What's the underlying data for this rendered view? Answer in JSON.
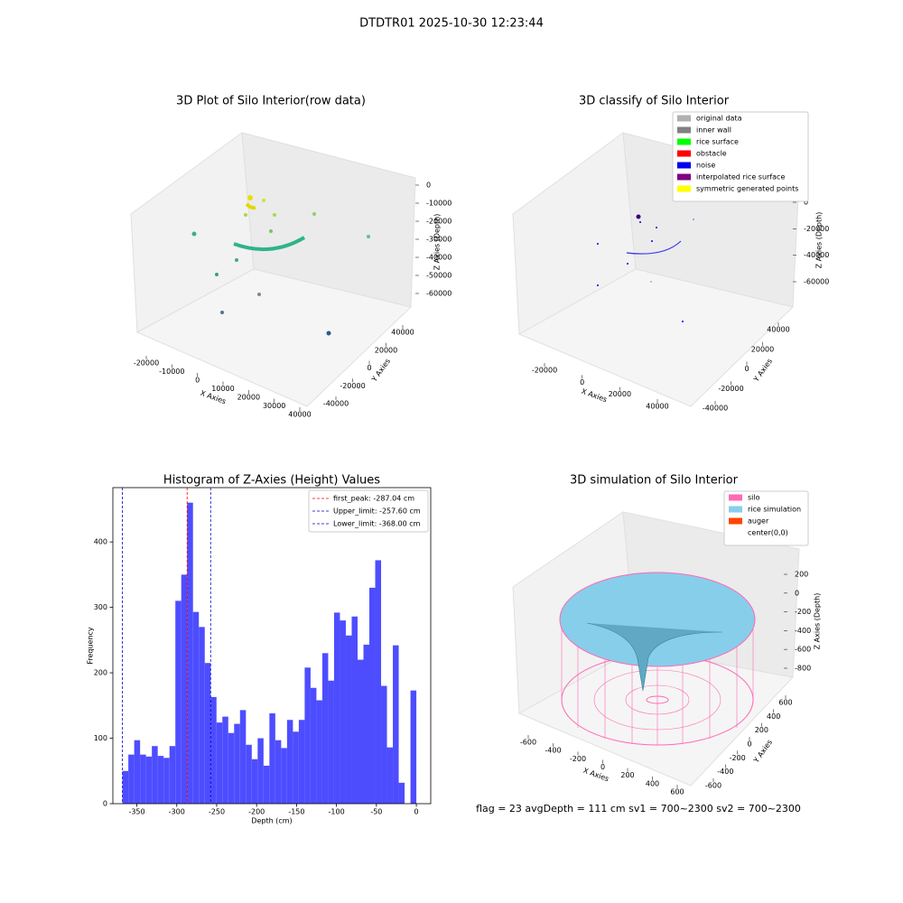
{
  "title": "DTDTR01 2025-10-30 12:23:44",
  "footer": "flag = 23  avgDepth = 111 cm  sv1 = 700~2300  sv2 = 700~2300",
  "chart_data": [
    {
      "type": "scatter3d",
      "title": "3D Plot of Silo Interior(row data)",
      "xlabel": "X Axies",
      "ylabel": "Y Axies",
      "zlabel": "Z Axies (Depth)",
      "xticks": [
        -20000,
        -10000,
        0,
        10000,
        20000,
        30000,
        40000
      ],
      "yticks": [
        -40000,
        -20000,
        0,
        20000,
        40000
      ],
      "zticks": [
        0,
        -10000,
        -20000,
        -30000,
        -40000,
        -50000,
        -60000
      ]
    },
    {
      "type": "scatter3d",
      "title": "3D classify of Silo Interior",
      "xlabel": "X Axies",
      "ylabel": "Y Axies",
      "zlabel": "Z Axies (Depth)",
      "xticks": [
        -20000,
        0,
        20000,
        40000
      ],
      "yticks": [
        -40000,
        -20000,
        0,
        20000,
        40000
      ],
      "zticks": [
        0,
        -20000,
        -40000,
        -60000
      ],
      "legend": [
        {
          "name": "original data",
          "color": "#b0b0b0"
        },
        {
          "name": "inner wall",
          "color": "#808080"
        },
        {
          "name": "rice surface",
          "color": "#00ff00"
        },
        {
          "name": "obstacle",
          "color": "#ff0000"
        },
        {
          "name": "noise",
          "color": "#0000ee"
        },
        {
          "name": "interpolated rice surface",
          "color": "#800080"
        },
        {
          "name": "symmetric generated points",
          "color": "#ffff00"
        }
      ]
    },
    {
      "type": "histogram",
      "title": "Histogram of Z-Axies (Height) Values",
      "xlabel": "Depth (cm)",
      "ylabel": "Frequency",
      "color": "#4d4dff",
      "bins": [
        -368,
        -360.64,
        -353.28,
        -345.92,
        -338.56,
        -331.2,
        -323.84,
        -316.48,
        -309.12,
        -301.76,
        -294.4,
        -287.04,
        -279.68,
        -272.32,
        -264.96,
        -257.6,
        -250.24,
        -242.88,
        -235.52,
        -228.16,
        -220.8,
        -213.44,
        -206.08,
        -198.72,
        -191.36,
        -184,
        -176.64,
        -169.28,
        -161.92,
        -154.56,
        -147.2,
        -139.84,
        -132.48,
        -125.12,
        -117.76,
        -110.4,
        -103.04,
        -95.68,
        -88.32,
        -80.96,
        -73.6,
        -66.24,
        -58.88,
        -51.52,
        -44.16,
        -36.8,
        -29.44,
        -22.08,
        -14.72,
        -7.36,
        0
      ],
      "values": [
        50,
        75,
        97,
        75,
        72,
        88,
        73,
        70,
        88,
        310,
        350,
        460,
        293,
        270,
        215,
        163,
        124,
        133,
        108,
        122,
        143,
        90,
        68,
        100,
        58,
        138,
        97,
        85,
        128,
        110,
        128,
        208,
        177,
        158,
        230,
        188,
        292,
        280,
        257,
        286,
        220,
        243,
        330,
        372,
        180,
        86,
        242,
        32,
        0,
        173
      ],
      "xlim": [
        -380,
        18
      ],
      "ylim": [
        0,
        483
      ],
      "xticks": [
        -350,
        -300,
        -250,
        -200,
        -150,
        -100,
        -50,
        0
      ],
      "yticks": [
        0,
        100,
        200,
        300,
        400
      ],
      "lines": [
        {
          "label": "first_peak: -287.04 cm",
          "value": -287.04,
          "color": "#ff0000"
        },
        {
          "label": "Upper_limit: -257.60 cm",
          "value": -257.6,
          "color": "#0000cc"
        },
        {
          "label": "Lower_limit: -368.00 cm",
          "value": -368,
          "color": "#0000cc"
        }
      ],
      "legend_loc": "upper right"
    },
    {
      "type": "surface3d",
      "title": "3D simulation of Silo Interior",
      "xlabel": "X Axies",
      "ylabel": "Y Axies",
      "zlabel": "Z Axies (Depth)",
      "xticks": [
        -600,
        -400,
        -200,
        0,
        200,
        400,
        600
      ],
      "yticks": [
        -600,
        -400,
        -200,
        0,
        200,
        400,
        600
      ],
      "zticks": [
        200,
        0,
        -200,
        -400,
        -600,
        -800
      ],
      "legend": [
        {
          "name": "silo",
          "color": "#ff69b4"
        },
        {
          "name": "rice simulation",
          "color": "#87ceeb"
        },
        {
          "name": "auger",
          "color": "#ff4500"
        },
        {
          "name": "center(0,0)",
          "color": "#ffffff"
        }
      ]
    }
  ]
}
